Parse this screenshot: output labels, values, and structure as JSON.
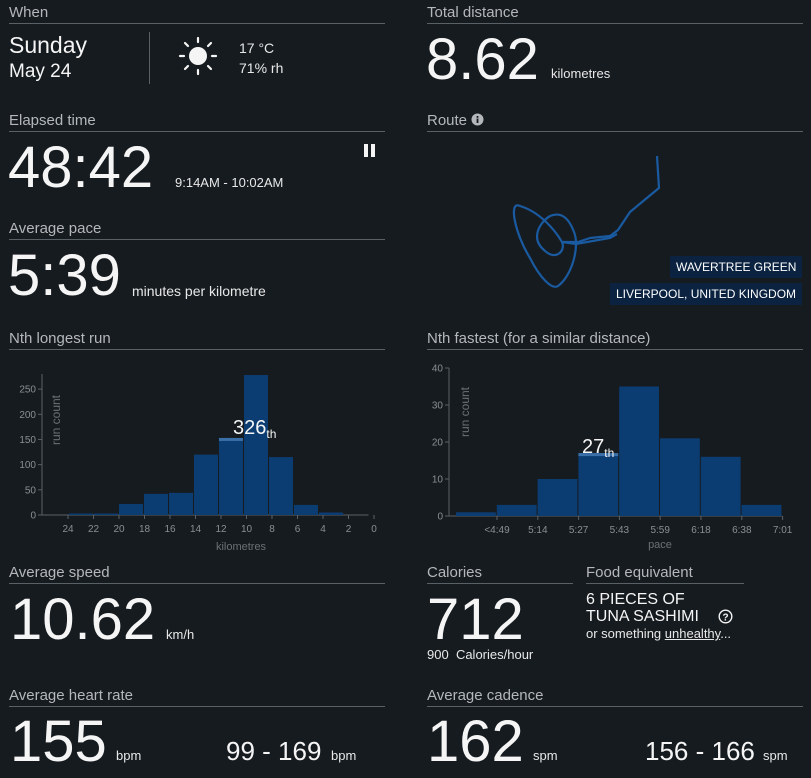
{
  "when": {
    "label": "When",
    "day": "Sunday",
    "date": "May 24",
    "temp": "17 °C",
    "humidity": "71% rh"
  },
  "total_distance": {
    "label": "Total distance",
    "value": "8.62",
    "unit": "kilometres"
  },
  "elapsed": {
    "label": "Elapsed time",
    "value": "48:42",
    "range": "9:14AM - 10:02AM"
  },
  "route": {
    "label": "Route",
    "place": "WAVERTREE GREEN",
    "city": "LIVERPOOL, UNITED KINGDOM"
  },
  "pace": {
    "label": "Average pace",
    "value": "5:39",
    "unit": "minutes per kilometre"
  },
  "nth_longest": {
    "label": "Nth longest run",
    "rank_num": "326",
    "rank_suffix": "th"
  },
  "nth_fastest": {
    "label": "Nth fastest (for a similar distance)",
    "rank_num": "27",
    "rank_suffix": "th"
  },
  "speed": {
    "label": "Average speed",
    "value": "10.62",
    "unit": "km/h"
  },
  "calories": {
    "label": "Calories",
    "value": "712",
    "rate": "900",
    "rate_unit": "Calories/hour"
  },
  "food": {
    "label": "Food equivalent",
    "line1": "6 PIECES OF",
    "line2": "TUNA SASHIMI",
    "alt_prefix": "or something",
    "alt_link": "unhealthy",
    "alt_suffix": "..."
  },
  "heart": {
    "label": "Average heart rate",
    "value": "155",
    "unit": "bpm",
    "range": "99 - 169",
    "range_unit": "bpm"
  },
  "cadence": {
    "label": "Average cadence",
    "value": "162",
    "unit": "spm",
    "range": "156 - 166",
    "range_unit": "spm"
  },
  "icons": {
    "weather": "sun-icon",
    "pause": "pause-icon",
    "info": "info-icon",
    "help": "question-circle-icon"
  },
  "colors": {
    "bar": "#0c3d72",
    "highlight": "#3a6fa8",
    "route": "#1a5aa0",
    "tag_bg": "#0b2340"
  },
  "chart_data": [
    {
      "type": "bar",
      "title": "Nth longest run",
      "categories": [
        "24",
        "22",
        "20",
        "18",
        "16",
        "14",
        "12",
        "10",
        "8",
        "6",
        "4",
        "2",
        "0"
      ],
      "values": [
        0,
        3,
        3,
        22,
        42,
        44,
        120,
        153,
        278,
        115,
        20,
        5,
        0
      ],
      "highlight_index": 7,
      "xlabel": "kilometres",
      "ylabel": "run count",
      "ylim": [
        0,
        280
      ],
      "yticks": [
        "0",
        "50",
        "100",
        "150",
        "200",
        "250"
      ]
    },
    {
      "type": "bar",
      "title": "Nth fastest (for a similar distance)",
      "categories": [
        "<4:49",
        "5:14",
        "5:27",
        "5:43",
        "5:59",
        "6:18",
        "6:38",
        "7:01"
      ],
      "values": [
        1,
        3,
        10,
        17,
        35,
        21,
        16,
        3
      ],
      "highlight_index": 3,
      "xlabel": "pace",
      "ylabel": "run count",
      "ylim": [
        0,
        40
      ],
      "yticks": [
        "0",
        "10",
        "20",
        "30",
        "40"
      ]
    }
  ]
}
